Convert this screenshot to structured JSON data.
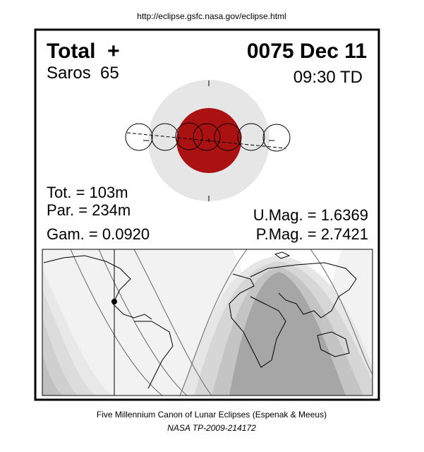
{
  "header": {
    "url": "http://eclipse.gsfc.nasa.gov/eclipse.html"
  },
  "panel": {
    "type": "Total  +",
    "saros": "Saros  65",
    "date": "0075 Dec 11",
    "time": "09:30 TD",
    "total_duration": "Tot. = 103m",
    "partial_duration": "Par. = 234m",
    "gamma": "Gam. = 0.0920",
    "umbral_magnitude": "U.Mag. = 1.6369",
    "penumbral_magnitude": "P.Mag. = 2.7421"
  },
  "footer": {
    "title": "Five Millennium Canon of Lunar Eclipses (Espenak & Meeus)",
    "reference": "NASA TP-2009-214172"
  }
}
